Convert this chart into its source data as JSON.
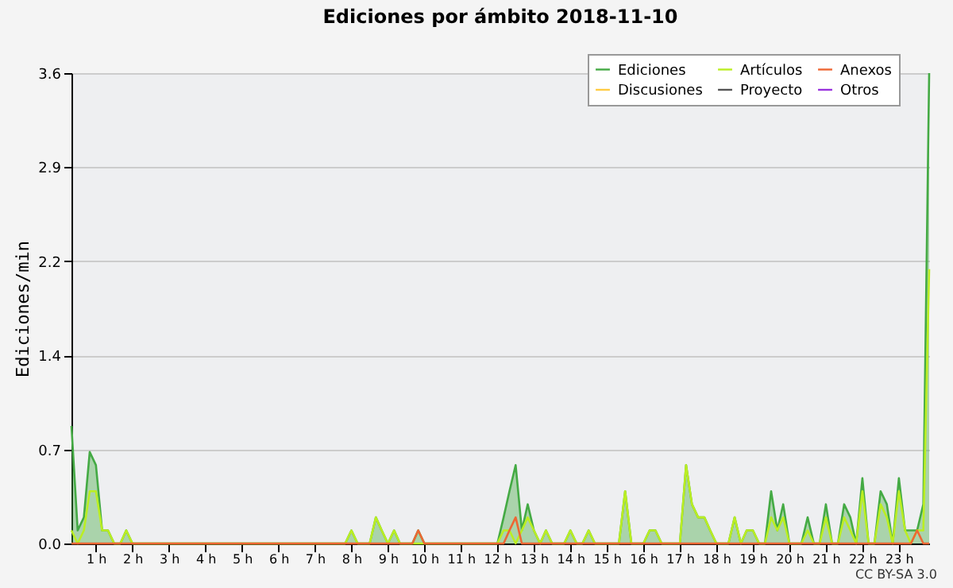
{
  "chart_data": {
    "type": "line",
    "title": "Ediciones por ámbito  2018-11-10",
    "ylabel": "Ediciones/min",
    "annotations": [
      "CC BY-SA 3.0"
    ],
    "xlim": [
      0.33,
      23.83
    ],
    "xticks": [
      {
        "value": 1,
        "label": "1 h"
      },
      {
        "value": 2,
        "label": "2 h"
      },
      {
        "value": 3,
        "label": "3 h"
      },
      {
        "value": 4,
        "label": "4 h"
      },
      {
        "value": 5,
        "label": "5 h"
      },
      {
        "value": 6,
        "label": "6 h"
      },
      {
        "value": 7,
        "label": "7 h"
      },
      {
        "value": 8,
        "label": "8 h"
      },
      {
        "value": 9,
        "label": "9 h"
      },
      {
        "value": 10,
        "label": "10 h"
      },
      {
        "value": 11,
        "label": "11 h"
      },
      {
        "value": 12,
        "label": "12 h"
      },
      {
        "value": 13,
        "label": "13 h"
      },
      {
        "value": 14,
        "label": "14 h"
      },
      {
        "value": 15,
        "label": "15 h"
      },
      {
        "value": 16,
        "label": "16 h"
      },
      {
        "value": 17,
        "label": "17 h"
      },
      {
        "value": 18,
        "label": "18 h"
      },
      {
        "value": 19,
        "label": "19 h"
      },
      {
        "value": 20,
        "label": "20 h"
      },
      {
        "value": 21,
        "label": "21 h"
      },
      {
        "value": 22,
        "label": "22 h"
      },
      {
        "value": 23,
        "label": "23 h"
      }
    ],
    "ylim": [
      0,
      3.6
    ],
    "yticks": [
      {
        "value": 0,
        "label": "0.0"
      },
      {
        "value": 0.72,
        "label": "0.7"
      },
      {
        "value": 1.44,
        "label": "1.4"
      },
      {
        "value": 2.16,
        "label": "2.2"
      },
      {
        "value": 2.88,
        "label": "2.9"
      },
      {
        "value": 3.6,
        "label": "3.6"
      }
    ],
    "grid": "y",
    "legend": "top right",
    "series": [
      {
        "name": "Ediciones",
        "type": "area",
        "color": "#44aa44",
        "x": [
          0.33,
          0.5,
          0.67,
          0.83,
          1,
          1.17,
          1.33,
          1.5,
          1.67,
          1.83,
          2,
          7.83,
          8,
          8.17,
          8.5,
          8.67,
          8.83,
          9,
          9.17,
          9.33,
          9.67,
          9.83,
          10,
          12,
          12.17,
          12.33,
          12.5,
          12.67,
          12.83,
          13,
          13.17,
          13.33,
          13.5,
          13.83,
          14,
          14.17,
          14.33,
          14.5,
          14.67,
          15.33,
          15.5,
          15.67,
          16,
          16.17,
          16.33,
          16.5,
          17,
          17.17,
          17.33,
          17.5,
          17.67,
          17.83,
          18,
          18.33,
          18.5,
          18.67,
          18.83,
          19,
          19.17,
          19.33,
          19.5,
          19.67,
          19.83,
          20,
          20.33,
          20.5,
          20.67,
          20.83,
          21,
          21.17,
          21.33,
          21.5,
          21.67,
          21.83,
          22,
          22.17,
          22.33,
          22.5,
          22.67,
          22.83,
          23,
          23.17,
          23.33,
          23.5,
          23.67,
          23.83
        ],
        "values": [
          0.9,
          0.1,
          0.2,
          0.7,
          0.6,
          0.1,
          0.1,
          0,
          0,
          0.1,
          0,
          0,
          0.1,
          0,
          0,
          0.2,
          0.1,
          0,
          0.1,
          0,
          0,
          0.1,
          0,
          0,
          0.2,
          0.4,
          0.6,
          0.1,
          0.3,
          0.1,
          0,
          0.1,
          0,
          0,
          0.1,
          0,
          0,
          0.1,
          0,
          0,
          0.4,
          0,
          0,
          0.1,
          0.1,
          0,
          0,
          0.6,
          0.3,
          0.2,
          0.2,
          0.1,
          0,
          0,
          0.2,
          0,
          0.1,
          0.1,
          0,
          0,
          0.4,
          0.1,
          0.3,
          0,
          0,
          0.2,
          0,
          0,
          0.3,
          0,
          0,
          0.3,
          0.2,
          0,
          0.5,
          0,
          0,
          0.4,
          0.3,
          0,
          0.5,
          0.1,
          0.1,
          0.1,
          0.3,
          3.6
        ]
      },
      {
        "name": "Artículos",
        "color": "#bbee22",
        "x": [
          0.33,
          0.5,
          0.67,
          0.83,
          1,
          1.17,
          1.33,
          1.5,
          1.67,
          1.83,
          2,
          7.83,
          8,
          8.17,
          8.5,
          8.67,
          8.83,
          9,
          9.17,
          9.33,
          9.67,
          9.83,
          10,
          12,
          12.17,
          12.33,
          12.5,
          12.67,
          12.83,
          13,
          13.17,
          13.33,
          13.5,
          13.83,
          14,
          14.17,
          14.33,
          14.5,
          14.67,
          15.33,
          15.5,
          15.67,
          16,
          16.17,
          16.33,
          16.5,
          17,
          17.17,
          17.33,
          17.5,
          17.67,
          17.83,
          18,
          18.33,
          18.5,
          18.67,
          18.83,
          19,
          19.17,
          19.33,
          19.5,
          19.67,
          19.83,
          20,
          20.33,
          20.5,
          20.67,
          20.83,
          21,
          21.17,
          21.33,
          21.5,
          21.67,
          21.83,
          22,
          22.17,
          22.33,
          22.5,
          22.67,
          22.83,
          23,
          23.17,
          23.33,
          23.5,
          23.67,
          23.83
        ],
        "values": [
          0.1,
          0,
          0.1,
          0.4,
          0.4,
          0.1,
          0.1,
          0,
          0,
          0.1,
          0,
          0,
          0.1,
          0,
          0,
          0.2,
          0.1,
          0,
          0.1,
          0,
          0,
          0,
          0,
          0,
          0.1,
          0.1,
          0,
          0.1,
          0.2,
          0.1,
          0,
          0.1,
          0,
          0,
          0.1,
          0,
          0,
          0.1,
          0,
          0,
          0.4,
          0,
          0,
          0.1,
          0.1,
          0,
          0,
          0.6,
          0.3,
          0.2,
          0.2,
          0.1,
          0,
          0,
          0.2,
          0,
          0.1,
          0.1,
          0,
          0,
          0.2,
          0.1,
          0.2,
          0,
          0,
          0.1,
          0,
          0,
          0.2,
          0,
          0,
          0.2,
          0.1,
          0,
          0.4,
          0,
          0,
          0.3,
          0.2,
          0,
          0.4,
          0.1,
          0,
          0.1,
          0.1,
          2.1
        ]
      },
      {
        "name": "Anexos",
        "color": "#ee6633",
        "x": [
          0.33,
          9.67,
          9.83,
          10,
          12.17,
          12.33,
          12.5,
          12.67,
          23.33,
          23.5,
          23.67,
          23.83
        ],
        "values": [
          0,
          0,
          0.1,
          0,
          0,
          0.1,
          0.2,
          0,
          0,
          0.1,
          0,
          0
        ]
      },
      {
        "name": "Discusiones",
        "color": "#ffcc44"
      },
      {
        "name": "Proyecto",
        "color": "#555555"
      },
      {
        "name": "Otros",
        "color": "#9933dd"
      }
    ]
  }
}
